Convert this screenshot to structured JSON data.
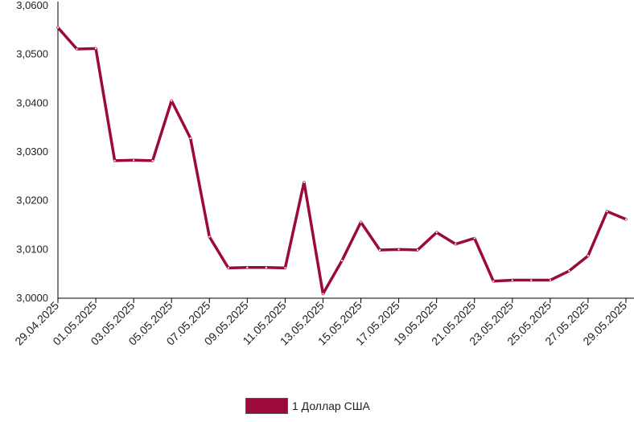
{
  "chart_data": {
    "type": "line",
    "title": "",
    "xlabel": "",
    "ylabel": "",
    "ylim": [
      3.0,
      3.06
    ],
    "y_ticks": [
      "3,0000",
      "3,0100",
      "3,0200",
      "3,0300",
      "3,0400",
      "3,0500",
      "3,0600"
    ],
    "x_tick_labels": [
      "29.04.2025",
      "01.05.2025",
      "03.05.2025",
      "05.05.2025",
      "07.05.2025",
      "09.05.2025",
      "11.05.2025",
      "13.05.2025",
      "15.05.2025",
      "17.05.2025",
      "19.05.2025",
      "21.05.2025",
      "23.05.2025",
      "25.05.2025",
      "27.05.2025",
      "29.05.2025"
    ],
    "x": [
      "29.04.2025",
      "30.04.2025",
      "01.05.2025",
      "02.05.2025",
      "03.05.2025",
      "04.05.2025",
      "05.05.2025",
      "06.05.2025",
      "07.05.2025",
      "08.05.2025",
      "09.05.2025",
      "10.05.2025",
      "11.05.2025",
      "12.05.2025",
      "13.05.2025",
      "14.05.2025",
      "15.05.2025",
      "16.05.2025",
      "17.05.2025",
      "18.05.2025",
      "19.05.2025",
      "20.05.2025",
      "21.05.2025",
      "22.05.2025",
      "23.05.2025",
      "24.05.2025",
      "25.05.2025",
      "26.05.2025",
      "27.05.2025",
      "28.05.2025",
      "29.05.2025"
    ],
    "series": [
      {
        "name": "1 Доллар США",
        "color": "#9b0a3b",
        "values": [
          3.0555,
          3.0511,
          3.0512,
          3.0282,
          3.0283,
          3.0282,
          3.0405,
          3.0328,
          3.0126,
          3.0062,
          3.0063,
          3.0063,
          3.0062,
          3.0238,
          3.0009,
          3.0077,
          3.0156,
          3.0099,
          3.01,
          3.0099,
          3.0135,
          3.0111,
          3.0123,
          3.0035,
          3.0037,
          3.0037,
          3.0037,
          3.0056,
          3.0087,
          3.0178,
          3.0162
        ]
      }
    ],
    "grid": false,
    "legend_position": "bottom"
  }
}
